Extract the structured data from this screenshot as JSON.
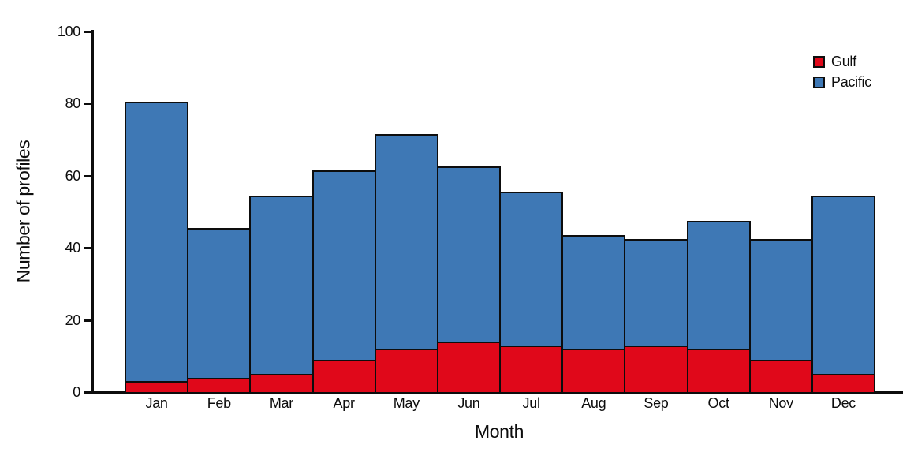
{
  "chart_data": {
    "type": "bar",
    "stacked": true,
    "title": "",
    "xlabel": "Month",
    "ylabel": "Number of profiles",
    "categories": [
      "Jan",
      "Feb",
      "Mar",
      "Apr",
      "May",
      "Jun",
      "Jul",
      "Aug",
      "Sep",
      "Oct",
      "Nov",
      "Dec"
    ],
    "series": [
      {
        "name": "Gulf",
        "color": "#e0081a",
        "values": [
          3,
          4,
          5,
          9,
          12,
          14,
          13,
          12,
          13,
          12,
          9,
          5
        ]
      },
      {
        "name": "Pacific",
        "color": "#3e78b5",
        "values": [
          77,
          41,
          49,
          52,
          59,
          48,
          42,
          31,
          29,
          35,
          33,
          49
        ]
      }
    ],
    "stack_totals": [
      80,
      45,
      54,
      61,
      71,
      62,
      55,
      43,
      42,
      47,
      42,
      54
    ],
    "ylim": [
      0,
      100
    ],
    "yticks": [
      0,
      20,
      40,
      60,
      80,
      100
    ],
    "grid": false,
    "legend_position": "top-right",
    "axis_color": "#0d0d0d",
    "bar_outline_color": "#0d0d0d"
  }
}
